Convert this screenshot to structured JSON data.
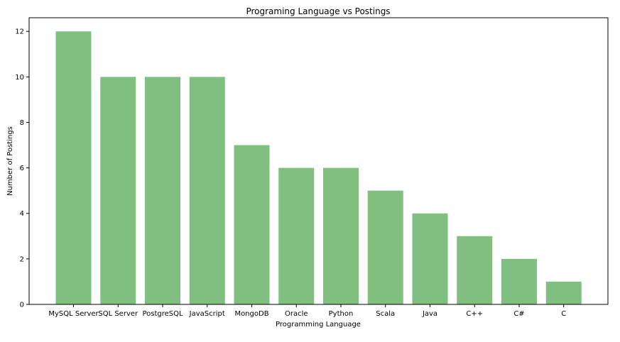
{
  "chart_data": {
    "type": "bar",
    "title": "Programing Language vs Postings",
    "xlabel": "Programming Language",
    "ylabel": "Number of Postings",
    "categories": [
      "MySQL Server",
      "SQL Server",
      "PostgreSQL",
      "JavaScript",
      "MongoDB",
      "Oracle",
      "Python",
      "Scala",
      "Java",
      "C++",
      "C#",
      "C"
    ],
    "values": [
      12,
      10,
      10,
      10,
      7,
      6,
      6,
      5,
      4,
      3,
      2,
      1
    ],
    "yticks": [
      0,
      2,
      4,
      6,
      8,
      10,
      12
    ],
    "ylim": [
      0,
      12.6
    ],
    "grid": false,
    "bar_color": "#81bf81"
  }
}
